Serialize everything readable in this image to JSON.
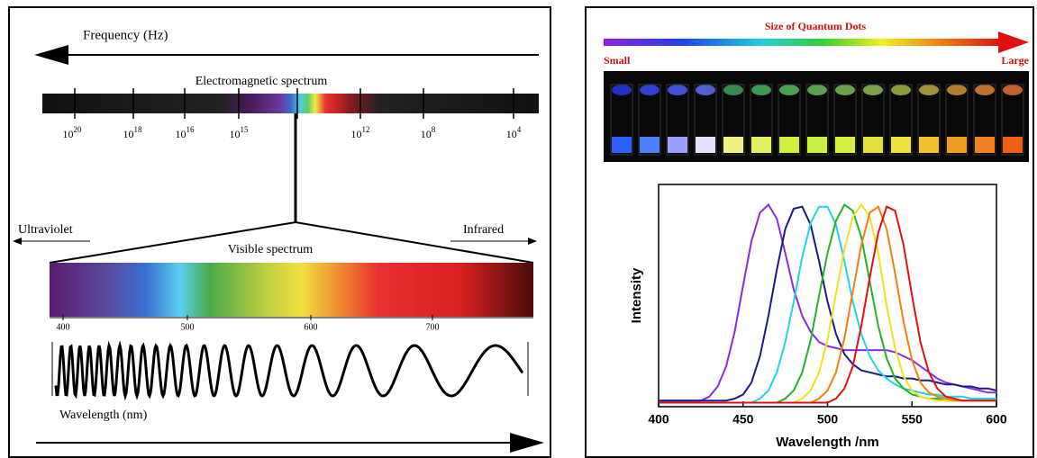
{
  "spectrum_diagram": {
    "frequency_label": "Frequency (Hz)",
    "em_title": "Electromagnetic spectrum",
    "frequency_ticks": [
      {
        "base": "10",
        "exp": "20"
      },
      {
        "base": "10",
        "exp": "18"
      },
      {
        "base": "10",
        "exp": "16"
      },
      {
        "base": "10",
        "exp": "15"
      },
      {
        "base": "10",
        "exp": "12"
      },
      {
        "base": "10",
        "exp": "8"
      },
      {
        "base": "10",
        "exp": "4"
      }
    ],
    "ultraviolet": "Ultraviolet",
    "infrared": "Infrared",
    "visible_title": "Visible spectrum",
    "visible_ticks": [
      "400",
      "500",
      "600",
      "700"
    ],
    "wavelength_label": "Wavelength (nm)"
  },
  "quantum_dots": {
    "title": "Size of Quantum Dots",
    "small": "Small",
    "large": "Large"
  },
  "chart_data": {
    "type": "line",
    "xlabel": "Wavelength /nm",
    "ylabel": "Intensity",
    "xlim": [
      400,
      600
    ],
    "xticks": [
      400,
      450,
      500,
      550,
      600
    ],
    "ylim": [
      0,
      1.1
    ],
    "x": [
      400,
      405,
      410,
      415,
      420,
      425,
      430,
      435,
      440,
      445,
      450,
      455,
      460,
      465,
      470,
      475,
      480,
      485,
      490,
      495,
      500,
      505,
      510,
      515,
      520,
      525,
      530,
      535,
      540,
      545,
      550,
      555,
      560,
      565,
      570,
      575,
      580,
      585,
      590,
      595,
      600
    ],
    "series": [
      {
        "color": "#8a2be2",
        "values": [
          0.03,
          0.03,
          0.03,
          0.03,
          0.03,
          0.03,
          0.05,
          0.1,
          0.2,
          0.37,
          0.6,
          0.82,
          0.96,
          1.0,
          0.93,
          0.76,
          0.58,
          0.45,
          0.37,
          0.32,
          0.3,
          0.29,
          0.28,
          0.28,
          0.28,
          0.28,
          0.28,
          0.28,
          0.27,
          0.25,
          0.23,
          0.2,
          0.17,
          0.14,
          0.12,
          0.11,
          0.1,
          0.09,
          0.08,
          0.07,
          0.07
        ]
      },
      {
        "color": "#1a1a8c",
        "values": [
          0.03,
          0.03,
          0.03,
          0.03,
          0.03,
          0.03,
          0.03,
          0.03,
          0.03,
          0.04,
          0.06,
          0.12,
          0.25,
          0.45,
          0.68,
          0.88,
          0.98,
          0.99,
          0.9,
          0.72,
          0.52,
          0.36,
          0.26,
          0.21,
          0.18,
          0.17,
          0.16,
          0.15,
          0.15,
          0.14,
          0.14,
          0.13,
          0.13,
          0.12,
          0.11,
          0.11,
          0.1,
          0.1,
          0.09,
          0.09,
          0.08
        ]
      },
      {
        "color": "#22d3e6",
        "values": [
          0.02,
          0.02,
          0.02,
          0.02,
          0.02,
          0.02,
          0.02,
          0.02,
          0.02,
          0.02,
          0.02,
          0.02,
          0.04,
          0.08,
          0.17,
          0.32,
          0.52,
          0.74,
          0.91,
          0.99,
          0.99,
          0.9,
          0.72,
          0.52,
          0.36,
          0.25,
          0.18,
          0.14,
          0.11,
          0.09,
          0.08,
          0.07,
          0.06,
          0.06,
          0.05,
          0.05,
          0.05,
          0.04,
          0.04,
          0.04,
          0.04
        ]
      },
      {
        "color": "#22b422",
        "values": [
          0.02,
          0.02,
          0.02,
          0.02,
          0.02,
          0.02,
          0.02,
          0.02,
          0.02,
          0.02,
          0.02,
          0.02,
          0.02,
          0.02,
          0.02,
          0.04,
          0.08,
          0.17,
          0.33,
          0.55,
          0.76,
          0.92,
          1.0,
          0.97,
          0.84,
          0.62,
          0.4,
          0.24,
          0.14,
          0.09,
          0.06,
          0.05,
          0.04,
          0.04,
          0.03,
          0.03,
          0.03,
          0.03,
          0.03,
          0.03,
          0.03
        ]
      },
      {
        "color": "#f0e020",
        "values": [
          0.02,
          0.02,
          0.02,
          0.02,
          0.02,
          0.02,
          0.02,
          0.02,
          0.02,
          0.02,
          0.02,
          0.02,
          0.02,
          0.02,
          0.02,
          0.02,
          0.02,
          0.04,
          0.08,
          0.17,
          0.33,
          0.56,
          0.78,
          0.94,
          1.0,
          0.94,
          0.76,
          0.5,
          0.29,
          0.15,
          0.08,
          0.05,
          0.04,
          0.03,
          0.03,
          0.03,
          0.03,
          0.03,
          0.03,
          0.03,
          0.03
        ]
      },
      {
        "color": "#f08010",
        "values": [
          0.02,
          0.02,
          0.02,
          0.02,
          0.02,
          0.02,
          0.02,
          0.02,
          0.02,
          0.02,
          0.02,
          0.02,
          0.02,
          0.02,
          0.02,
          0.02,
          0.02,
          0.02,
          0.02,
          0.04,
          0.08,
          0.17,
          0.34,
          0.57,
          0.8,
          0.96,
          0.99,
          0.88,
          0.66,
          0.42,
          0.23,
          0.12,
          0.07,
          0.05,
          0.04,
          0.03,
          0.03,
          0.03,
          0.03,
          0.03,
          0.03
        ]
      },
      {
        "color": "#e01010",
        "values": [
          0.02,
          0.02,
          0.02,
          0.02,
          0.02,
          0.02,
          0.02,
          0.02,
          0.02,
          0.02,
          0.02,
          0.02,
          0.02,
          0.02,
          0.02,
          0.02,
          0.02,
          0.02,
          0.02,
          0.02,
          0.02,
          0.04,
          0.09,
          0.2,
          0.4,
          0.64,
          0.86,
          0.99,
          0.97,
          0.8,
          0.55,
          0.32,
          0.17,
          0.09,
          0.05,
          0.04,
          0.03,
          0.03,
          0.03,
          0.03,
          0.03
        ]
      }
    ]
  }
}
